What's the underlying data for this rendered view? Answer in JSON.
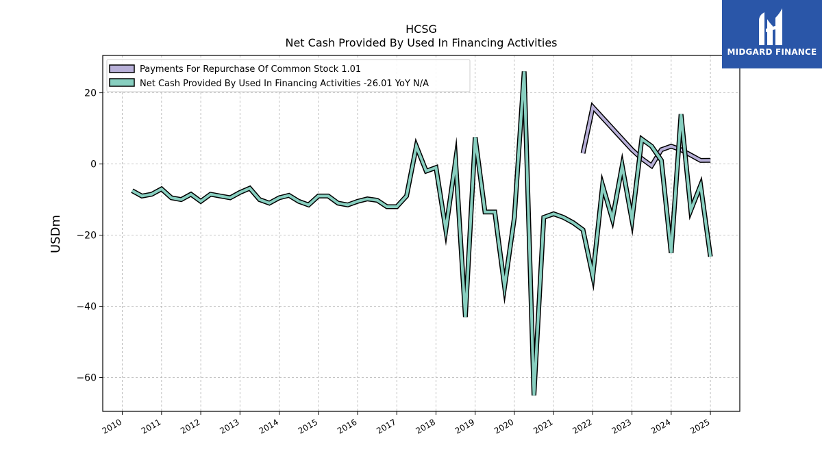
{
  "brand": {
    "name": "MIDGARD FINANCE",
    "color": "#2a56a8"
  },
  "chart_data": {
    "type": "line",
    "title": "HCSG",
    "subtitle": "Net Cash Provided By Used In Financing Activities",
    "xlabel": "",
    "ylabel": "USDm",
    "xlim": [
      2009.5,
      2025.75
    ],
    "ylim": [
      -69.5,
      30.5
    ],
    "xticks": [
      "2010",
      "2011",
      "2012",
      "2013",
      "2014",
      "2015",
      "2016",
      "2017",
      "2018",
      "2019",
      "2020",
      "2021",
      "2022",
      "2023",
      "2024",
      "2025"
    ],
    "yticks": [
      20,
      0,
      -20,
      -40,
      -60
    ],
    "ytick_labels": [
      "20",
      "0",
      "−20",
      "−40",
      "−60"
    ],
    "grid": true,
    "legend_position": "top-left",
    "series": [
      {
        "name": "Payments For Repurchase Of Common Stock  1.01",
        "color": "#b8b0d8",
        "x": [
          2021.75,
          2022.0,
          2022.25,
          2022.5,
          2022.75,
          2023.0,
          2023.25,
          2023.5,
          2023.75,
          2024.0,
          2024.25,
          2024.5,
          2024.75,
          2025.0
        ],
        "y": [
          3.0,
          16.0,
          13.0,
          10.0,
          7.0,
          4.0,
          1.5,
          -0.5,
          4.0,
          5.0,
          4.0,
          2.5,
          1.0,
          1.01
        ]
      },
      {
        "name": "Net Cash Provided By Used In Financing Activities  -26.01 YoY N/A",
        "color": "#88cfc0",
        "x": [
          2010.25,
          2010.5,
          2010.75,
          2011.0,
          2011.25,
          2011.5,
          2011.75,
          2012.0,
          2012.25,
          2012.5,
          2012.75,
          2013.0,
          2013.25,
          2013.5,
          2013.75,
          2014.0,
          2014.25,
          2014.5,
          2014.75,
          2015.0,
          2015.25,
          2015.5,
          2015.75,
          2016.0,
          2016.25,
          2016.5,
          2016.75,
          2017.0,
          2017.25,
          2017.5,
          2017.75,
          2018.0,
          2018.25,
          2018.5,
          2018.75,
          2019.0,
          2019.25,
          2019.5,
          2019.75,
          2020.0,
          2020.25,
          2020.5,
          2020.75,
          2021.0,
          2021.25,
          2021.5,
          2021.75,
          2022.0,
          2022.25,
          2022.5,
          2022.75,
          2023.0,
          2023.25,
          2023.5,
          2023.75,
          2024.0,
          2024.25,
          2024.5,
          2024.75,
          2025.0
        ],
        "y": [
          -7.5,
          -9.0,
          -8.5,
          -7.0,
          -9.5,
          -10.0,
          -8.5,
          -10.5,
          -8.5,
          -9.0,
          -9.5,
          -8.0,
          -6.8,
          -10.0,
          -11.0,
          -9.5,
          -8.8,
          -10.5,
          -11.5,
          -9.0,
          -9.0,
          -11.0,
          -11.5,
          -10.5,
          -9.8,
          -10.2,
          -12.0,
          -12.0,
          -9.0,
          5.0,
          -2.0,
          -1.0,
          -18.5,
          1.0,
          -43.0,
          7.5,
          -13.5,
          -13.5,
          -34.5,
          -15.0,
          26.0,
          -65.0,
          -15.0,
          -14.0,
          -15.0,
          -16.5,
          -18.5,
          -31.5,
          -6.0,
          -15.5,
          -0.5,
          -15.8,
          7.0,
          5.0,
          1.0,
          -25.0,
          14.0,
          -13.0,
          -6.0,
          -26.01
        ]
      }
    ]
  }
}
